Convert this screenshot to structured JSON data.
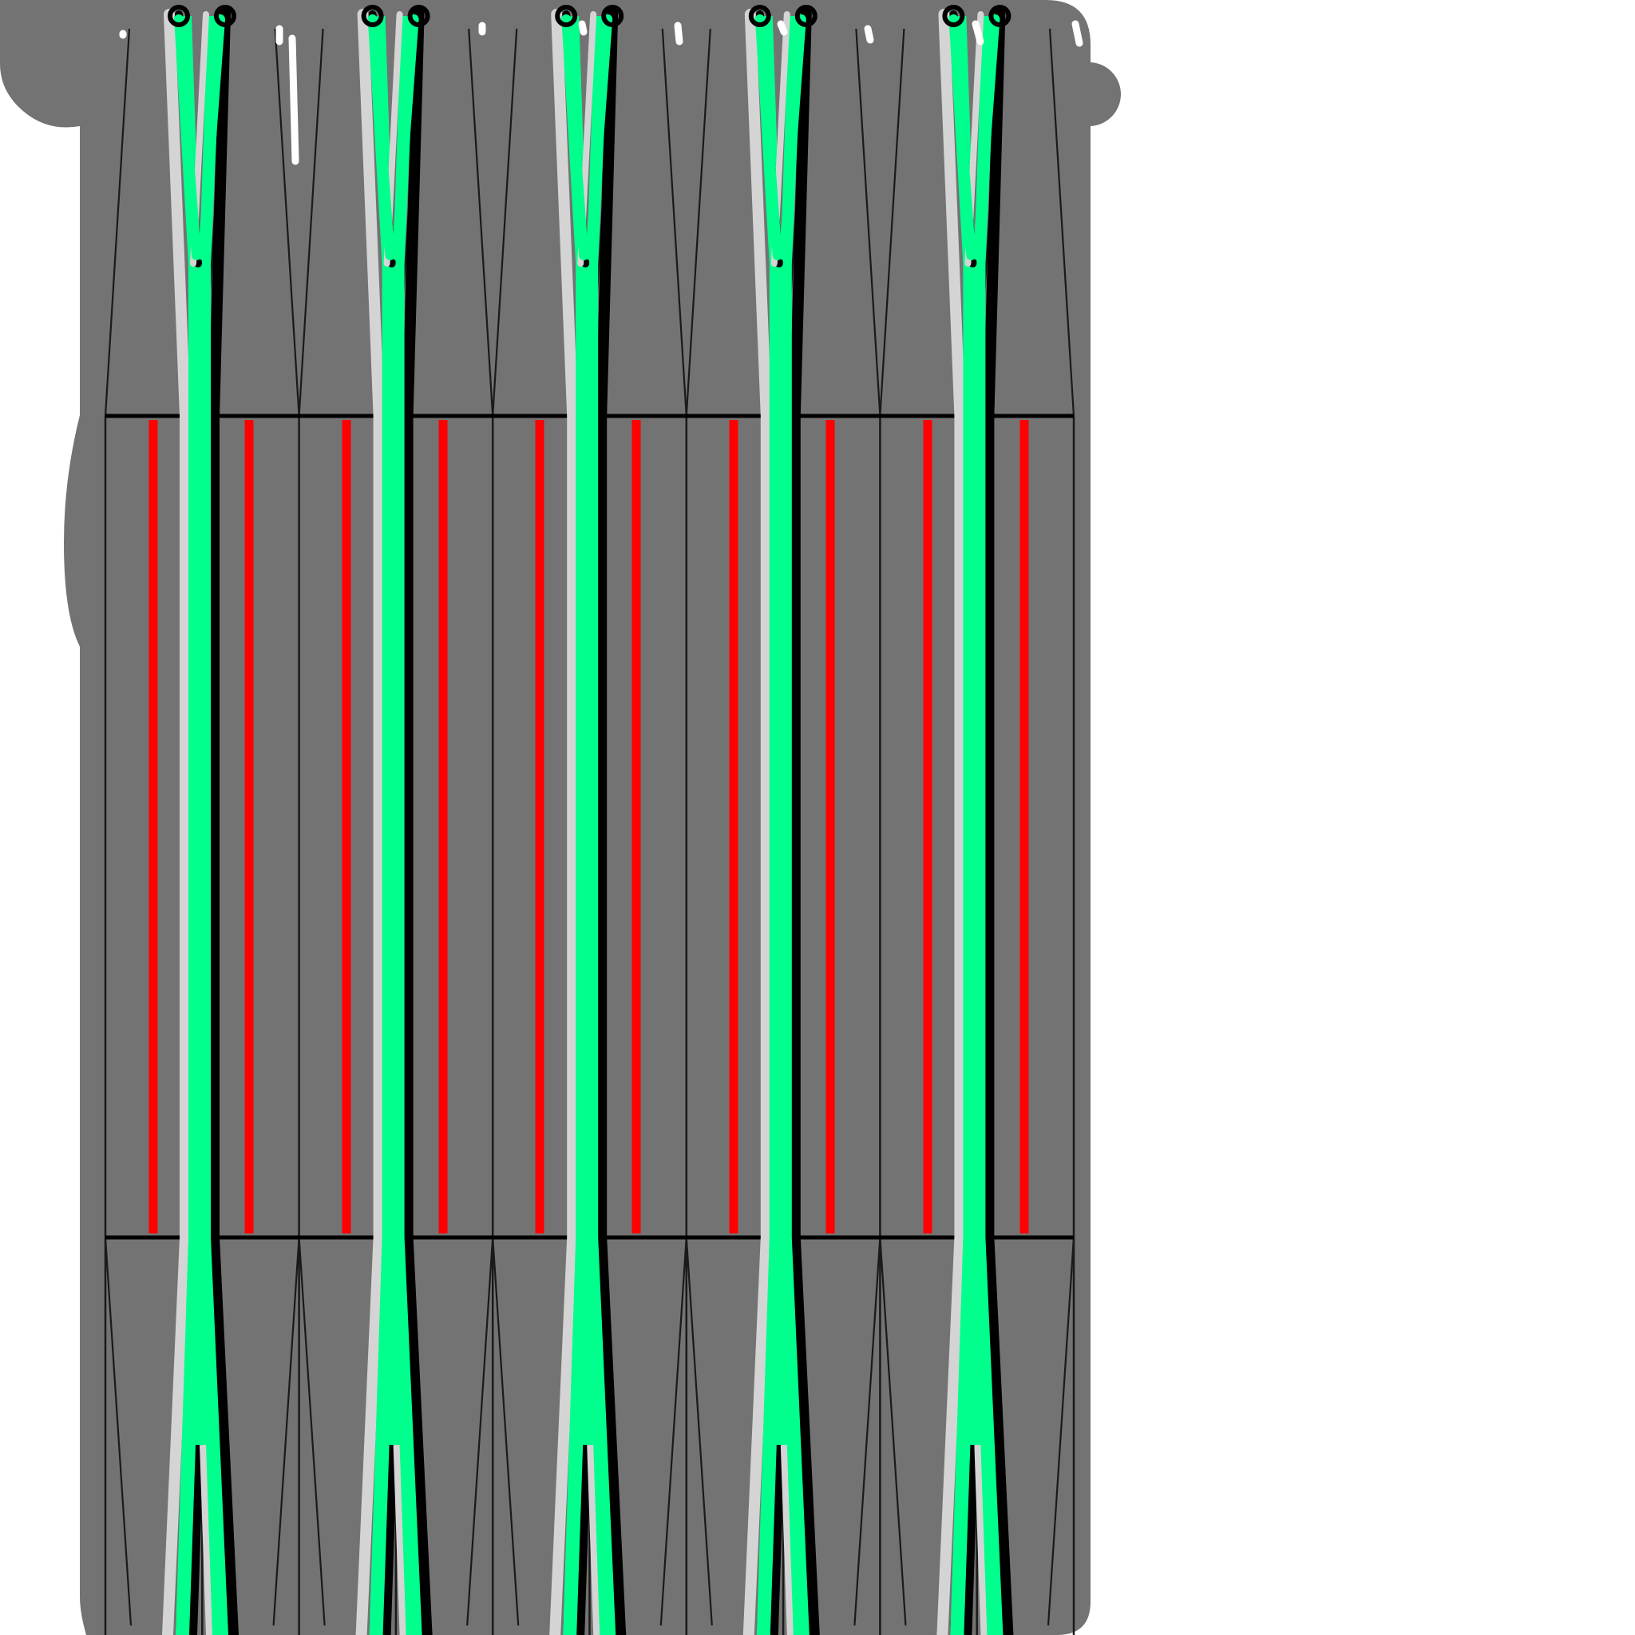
{
  "colors": {
    "page_background": "#ffffff",
    "board_fill": "#737373",
    "thin_line": "#1a1a1a",
    "band_line": "#000000",
    "highlight_line": "#ff0000",
    "strip_fill": "#00ff8c",
    "strip_outline_dark": "#000000",
    "strip_outline_light": "#d4d4d4",
    "mark": "#ffffff"
  },
  "diagram": {
    "sections": [
      "upper-taper",
      "central-band",
      "lower-taper"
    ],
    "column_count": 10,
    "strip_count": 5,
    "highlight_line_count": 10
  }
}
